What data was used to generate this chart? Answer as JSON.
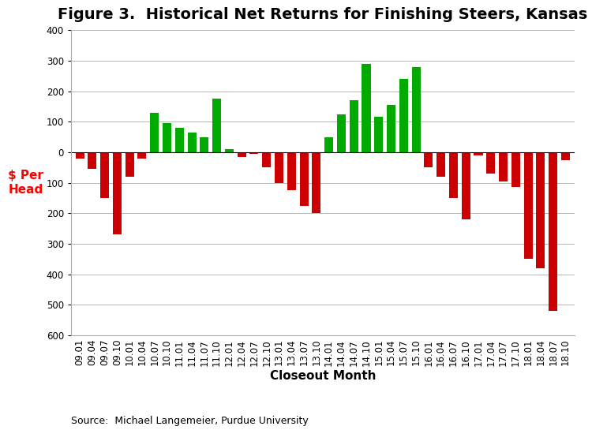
{
  "title": "Figure 3.  Historical Net Returns for Finishing Steers, Kansas",
  "xlabel": "Closeout Month",
  "ylabel": "$ Per\nHead",
  "source": "Source:  Michael Langemeier, Purdue University",
  "ylim": [
    -600,
    400
  ],
  "yticks": [
    400,
    300,
    200,
    100,
    0,
    -100,
    -200,
    -300,
    -400,
    -500,
    -600
  ],
  "categories": [
    "09.01",
    "09.04",
    "09.07",
    "09.10",
    "10.01",
    "10.04",
    "10.07",
    "10.10",
    "11.01",
    "11.04",
    "11.07",
    "11.10",
    "12.01",
    "12.04",
    "12.07",
    "12.10",
    "13.01",
    "13.04",
    "13.07",
    "13.10",
    "14.01",
    "14.04",
    "14.07",
    "14.10",
    "15.01",
    "15.04",
    "15.07",
    "15.10",
    "16.01",
    "16.04",
    "16.07",
    "16.10",
    "17.01",
    "17.04",
    "17.07",
    "17.10",
    "18.01",
    "18.04",
    "18.07",
    "18.10"
  ],
  "values": [
    -20,
    -55,
    -150,
    -270,
    -80,
    -20,
    130,
    95,
    80,
    65,
    50,
    175,
    10,
    -15,
    -5,
    -50,
    -100,
    -125,
    -175,
    -200,
    50,
    125,
    170,
    290,
    115,
    155,
    240,
    280,
    -50,
    -80,
    -150,
    -220,
    -10,
    -70,
    -95,
    -115,
    -350,
    -380,
    -520,
    -25
  ],
  "positive_color": "#00aa00",
  "negative_color": "#cc0000",
  "grid_color": "#aaaaaa",
  "title_fontsize": 14,
  "axis_fontsize": 11,
  "tick_fontsize": 8.5
}
